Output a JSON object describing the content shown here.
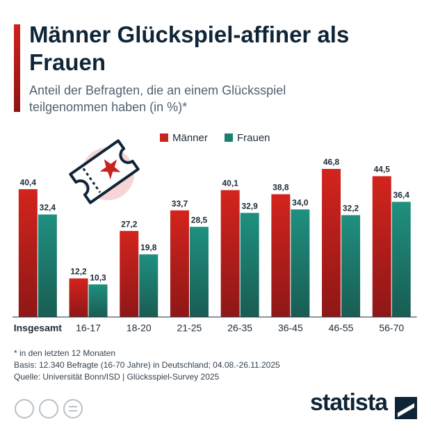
{
  "chart_data": {
    "type": "bar",
    "title": "Männer Glückspiel-affiner als Frauen",
    "subtitle": "Anteil der Befragten, die an einem Glücksspiel teilgenommen haben (in %)*",
    "categories": [
      "Insgesamt",
      "16-17",
      "18-20",
      "21-25",
      "26-35",
      "36-45",
      "46-55",
      "56-70"
    ],
    "series": [
      {
        "name": "Männer",
        "color": "#c8241f",
        "values": [
          40.4,
          12.2,
          27.2,
          33.7,
          40.1,
          38.8,
          46.8,
          44.5
        ],
        "value_labels": [
          "40,4",
          "12,2",
          "27,2",
          "33,7",
          "40,1",
          "38,8",
          "46,8",
          "44,5"
        ]
      },
      {
        "name": "Frauen",
        "color": "#1a8070",
        "values": [
          32.4,
          10.3,
          19.8,
          28.5,
          32.9,
          34.0,
          32.2,
          36.4
        ],
        "value_labels": [
          "32,4",
          "10,3",
          "19,8",
          "28,5",
          "32,9",
          "34,0",
          "32,2",
          "36,4"
        ]
      }
    ],
    "notes": [
      "* in den letzten 12 Monaten",
      "Basis: 12.340 Befragte (16-70 Jahre) in Deutschland; 04.08.-26.11.2025",
      "Quelle: Universität Bonn/ISD | Glücksspiel-Survey 2025"
    ],
    "brand": "statista"
  }
}
